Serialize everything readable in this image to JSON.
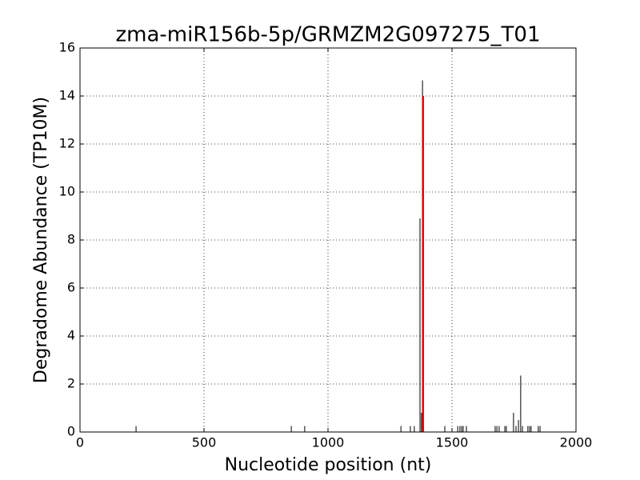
{
  "chart_data": {
    "type": "stem",
    "title": "zma-miR156b-5p/GRMZM2G097275_T01",
    "x_label": "Nucleotide position (nt)",
    "y_label": "Degradome Abundance (TP10M)",
    "xlim": [
      0,
      2000
    ],
    "xticks": [
      0,
      500,
      1000,
      1500,
      2000
    ],
    "ylim": [
      0,
      16
    ],
    "yticks": [
      0,
      2,
      4,
      6,
      8,
      10,
      12,
      14,
      16
    ],
    "grid": true,
    "series": [
      {
        "color": "#000000",
        "x": [
          226,
          852,
          906,
          1294,
          1332,
          1348,
          1371,
          1377,
          1381,
          1471,
          1523,
          1532,
          1539,
          1545,
          1558,
          1674,
          1681,
          1690,
          1713,
          1719,
          1748,
          1758,
          1768,
          1777,
          1784,
          1806,
          1813,
          1819,
          1848,
          1855
        ],
        "values": [
          0.25,
          0.25,
          0.25,
          0.25,
          0.25,
          0.25,
          8.9,
          0.8,
          14.65,
          0.25,
          0.25,
          0.25,
          0.25,
          0.25,
          0.25,
          0.25,
          0.25,
          0.25,
          0.25,
          0.25,
          0.8,
          0.25,
          0.5,
          2.35,
          0.25,
          0.25,
          0.25,
          0.25,
          0.25,
          0.25
        ]
      },
      {
        "color": "#ff0000",
        "x": [
          1384
        ],
        "values": [
          14
        ]
      }
    ]
  }
}
